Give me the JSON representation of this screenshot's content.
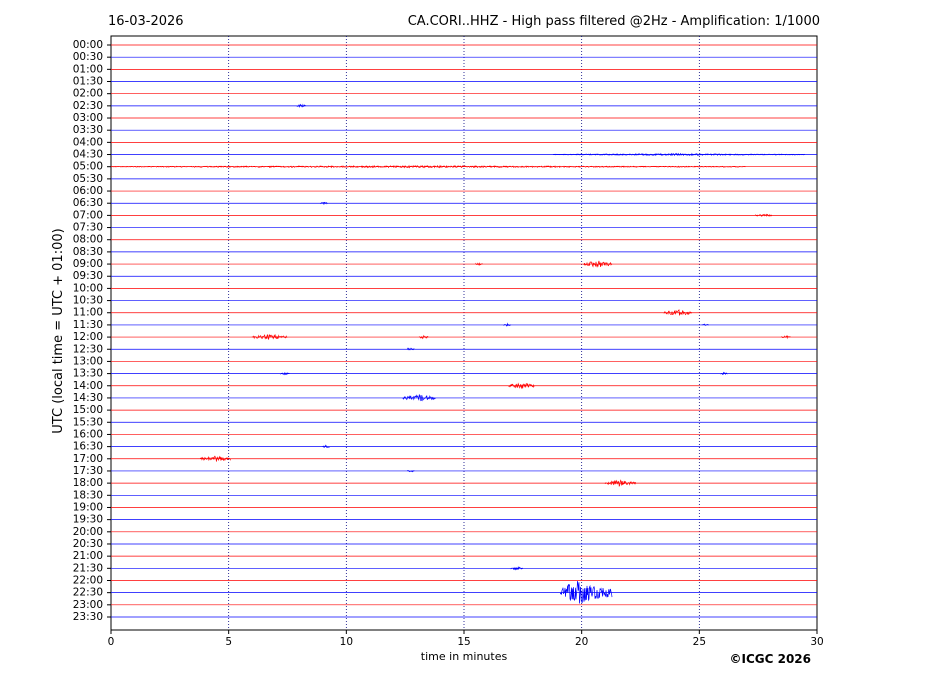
{
  "chart_data": {
    "type": "helicorder",
    "date": "16-03-2026",
    "title": "CA.CORI..HHZ - High pass filtered @2Hz - Amplification: 1/1000",
    "y_label": "UTC (local time = UTC + 01:00)",
    "x_label": "time in minutes",
    "copyright": "©ICGC 2026",
    "categories": [
      "00:00",
      "00:30",
      "01:00",
      "01:30",
      "02:00",
      "02:30",
      "03:00",
      "03:30",
      "04:00",
      "04:30",
      "05:00",
      "05:30",
      "06:00",
      "06:30",
      "07:00",
      "07:30",
      "08:00",
      "08:30",
      "09:00",
      "09:30",
      "10:00",
      "10:30",
      "11:00",
      "11:30",
      "12:00",
      "12:30",
      "13:00",
      "13:30",
      "14:00",
      "14:30",
      "15:00",
      "15:30",
      "16:00",
      "16:30",
      "17:00",
      "17:30",
      "18:00",
      "18:30",
      "19:00",
      "19:30",
      "20:00",
      "20:30",
      "21:00",
      "21:30",
      "22:00",
      "22:30",
      "23:00",
      "23:30"
    ],
    "colors": [
      "#ff0000",
      "#0000ff"
    ],
    "xlim": [
      0,
      30
    ],
    "xticks": [
      0,
      5,
      10,
      15,
      20,
      25,
      30
    ],
    "grid": true,
    "events": [
      {
        "row": 5,
        "start": 7.9,
        "end": 8.3,
        "amplitude": 0.15
      },
      {
        "row": 9,
        "start": 18.8,
        "end": 29.5,
        "amplitude": 0.08
      },
      {
        "row": 10,
        "start": 0.0,
        "end": 27.0,
        "amplitude": 0.08
      },
      {
        "row": 13,
        "start": 8.9,
        "end": 9.2,
        "amplitude": 0.12
      },
      {
        "row": 14,
        "start": 27.4,
        "end": 28.1,
        "amplitude": 0.12
      },
      {
        "row": 18,
        "start": 15.5,
        "end": 15.8,
        "amplitude": 0.1
      },
      {
        "row": 18,
        "start": 20.1,
        "end": 21.3,
        "amplitude": 0.3
      },
      {
        "row": 22,
        "start": 23.5,
        "end": 24.7,
        "amplitude": 0.28
      },
      {
        "row": 23,
        "start": 16.7,
        "end": 17.0,
        "amplitude": 0.12
      },
      {
        "row": 23,
        "start": 25.1,
        "end": 25.4,
        "amplitude": 0.1
      },
      {
        "row": 24,
        "start": 6.0,
        "end": 7.5,
        "amplitude": 0.22
      },
      {
        "row": 24,
        "start": 13.1,
        "end": 13.5,
        "amplitude": 0.15
      },
      {
        "row": 24,
        "start": 28.5,
        "end": 28.9,
        "amplitude": 0.12
      },
      {
        "row": 25,
        "start": 12.6,
        "end": 12.9,
        "amplitude": 0.15
      },
      {
        "row": 27,
        "start": 7.2,
        "end": 7.6,
        "amplitude": 0.1
      },
      {
        "row": 27,
        "start": 25.9,
        "end": 26.2,
        "amplitude": 0.1
      },
      {
        "row": 28,
        "start": 16.9,
        "end": 18.0,
        "amplitude": 0.28
      },
      {
        "row": 29,
        "start": 12.4,
        "end": 13.8,
        "amplitude": 0.3
      },
      {
        "row": 33,
        "start": 9.0,
        "end": 9.3,
        "amplitude": 0.12
      },
      {
        "row": 34,
        "start": 3.8,
        "end": 5.1,
        "amplitude": 0.25
      },
      {
        "row": 35,
        "start": 12.6,
        "end": 12.9,
        "amplitude": 0.12
      },
      {
        "row": 36,
        "start": 21.0,
        "end": 22.3,
        "amplitude": 0.25
      },
      {
        "row": 43,
        "start": 17.0,
        "end": 17.5,
        "amplitude": 0.15
      },
      {
        "row": 45,
        "start": 19.1,
        "end": 21.3,
        "amplitude": 1.1
      }
    ]
  }
}
